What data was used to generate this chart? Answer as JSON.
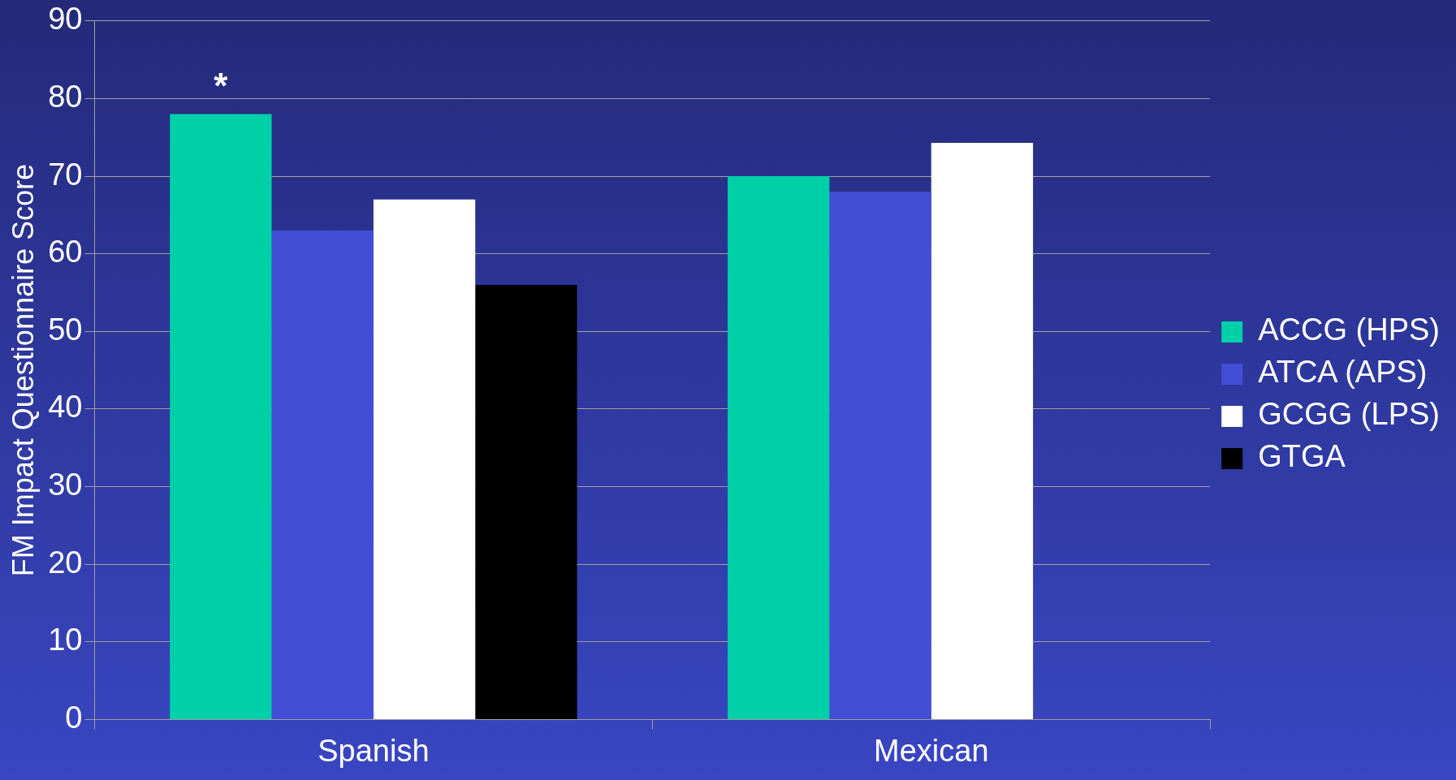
{
  "chart_data": {
    "type": "bar",
    "ylabel": "FM Impact Questionnaire Score",
    "categories": [
      "Spanish",
      "Mexican"
    ],
    "series": [
      {
        "name": "ACCG (HPS)",
        "color": "#00d0a8",
        "values": [
          78,
          70
        ]
      },
      {
        "name": "ATCA (APS)",
        "color": "#434ed6",
        "values": [
          63,
          68
        ]
      },
      {
        "name": "GCGG (LPS)",
        "color": "#ffffff",
        "values": [
          67,
          74.3
        ]
      },
      {
        "name": "GTGA",
        "color": "#000000",
        "values": [
          56,
          null
        ]
      }
    ],
    "ylim": [
      0,
      90
    ],
    "yticks": [
      0,
      10,
      20,
      30,
      40,
      50,
      60,
      70,
      80,
      90
    ],
    "grid": "y",
    "legend": "right",
    "annotations": [
      "*"
    ]
  }
}
